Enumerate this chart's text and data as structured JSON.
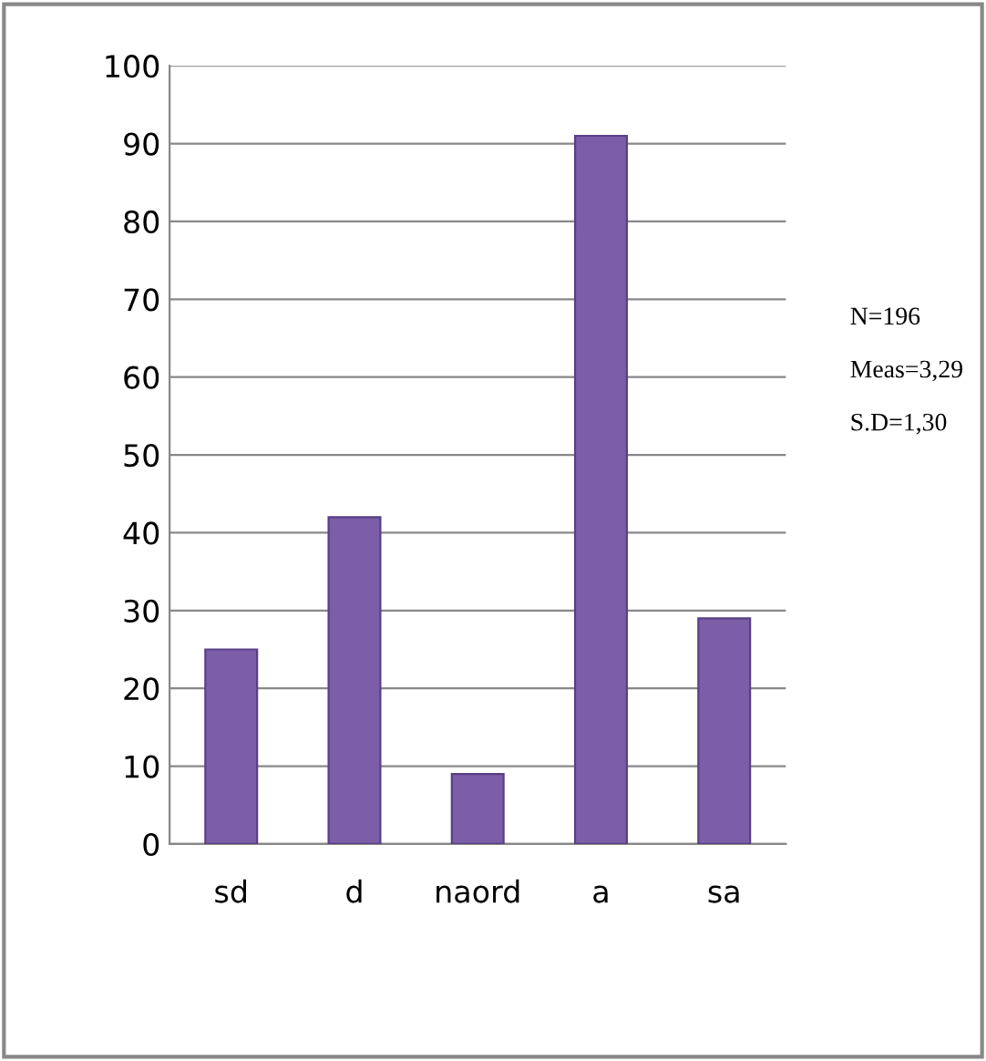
{
  "chart_data": {
    "type": "bar",
    "categories": [
      "sd",
      "d",
      "naord",
      "a",
      "sa"
    ],
    "values": [
      25,
      42,
      9,
      91,
      29
    ],
    "color": "#7b5ea7",
    "ylim": [
      0,
      100
    ],
    "yticks": [
      0,
      10,
      20,
      30,
      40,
      50,
      60,
      70,
      80,
      90,
      100
    ],
    "grid": "y",
    "annotations": [
      "N=196",
      "Meas=3,29",
      "S.D=1,30"
    ]
  }
}
